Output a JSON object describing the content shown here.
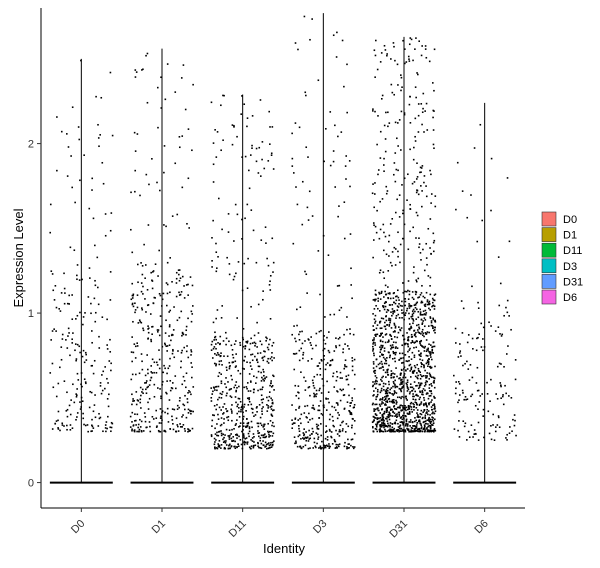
{
  "chart_data": {
    "type": "scatter",
    "subtype": "violin-jitter",
    "title": "",
    "xlabel": "Identity",
    "ylabel": "Expression Level",
    "categories": [
      "D0",
      "D1",
      "D11",
      "D3",
      "D31",
      "D6"
    ],
    "ylim": [
      -0.15,
      2.8
    ],
    "y_ticks": [
      0,
      1,
      2
    ],
    "max_values": [
      2.5,
      2.56,
      2.29,
      2.77,
      2.63,
      2.24
    ],
    "zero_baseline": 0,
    "grid": false,
    "legend": {
      "position": "right",
      "entries": [
        {
          "name": "D0",
          "color": "#F8766D"
        },
        {
          "name": "D1",
          "color": "#B79F00"
        },
        {
          "name": "D11",
          "color": "#00BA38"
        },
        {
          "name": "D3",
          "color": "#00BFC4"
        },
        {
          "name": "D31",
          "color": "#619CFF"
        },
        {
          "name": "D6",
          "color": "#F564E3"
        }
      ]
    },
    "point_color": "#000000",
    "tick_label_rotation": -45
  }
}
